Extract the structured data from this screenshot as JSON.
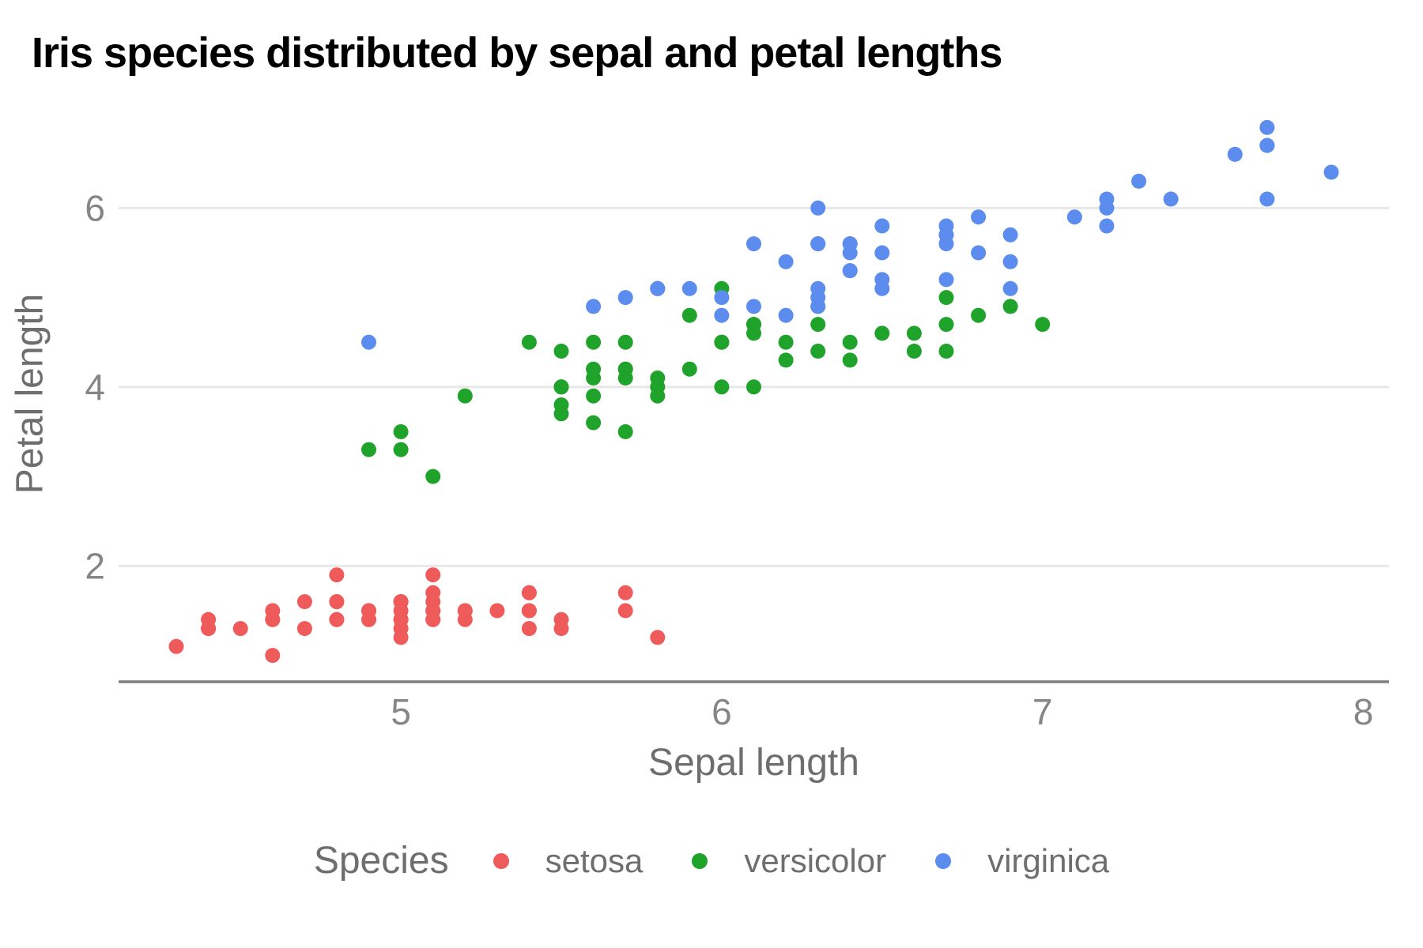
{
  "chart_data": {
    "type": "scatter",
    "title": "Iris species distributed by sepal and petal lengths",
    "xlabel": "Sepal length",
    "ylabel": "Petal length",
    "legend_title": "Species",
    "legend_position": "bottom",
    "grid": "horizontal-only",
    "xlim": [
      4.12,
      8.08
    ],
    "ylim": [
      0.705,
      7.195
    ],
    "xticks": [
      5,
      6,
      7,
      8
    ],
    "yticks": [
      2,
      4,
      6
    ],
    "colors": {
      "setosa": "#ef5a5a",
      "versicolor": "#1fa32b",
      "virginica": "#5b8cee",
      "gridline": "#e8e8e8",
      "axis_line": "#7f7f7f",
      "tick_text": "#868686",
      "axis_title_text": "#6e6e6e",
      "title_text": "#000000"
    },
    "series": [
      {
        "name": "setosa",
        "color": "#ef5a5a",
        "points": [
          [
            5.1,
            1.4
          ],
          [
            4.9,
            1.4
          ],
          [
            4.7,
            1.3
          ],
          [
            4.6,
            1.5
          ],
          [
            5.0,
            1.4
          ],
          [
            5.4,
            1.7
          ],
          [
            4.6,
            1.4
          ],
          [
            5.0,
            1.5
          ],
          [
            4.4,
            1.4
          ],
          [
            4.9,
            1.5
          ],
          [
            5.4,
            1.5
          ],
          [
            4.8,
            1.6
          ],
          [
            4.8,
            1.4
          ],
          [
            4.3,
            1.1
          ],
          [
            5.8,
            1.2
          ],
          [
            5.7,
            1.5
          ],
          [
            5.4,
            1.3
          ],
          [
            5.1,
            1.4
          ],
          [
            5.7,
            1.7
          ],
          [
            5.1,
            1.5
          ],
          [
            5.4,
            1.7
          ],
          [
            5.1,
            1.5
          ],
          [
            4.6,
            1.0
          ],
          [
            5.1,
            1.7
          ],
          [
            4.8,
            1.9
          ],
          [
            5.0,
            1.6
          ],
          [
            5.0,
            1.6
          ],
          [
            5.2,
            1.5
          ],
          [
            5.2,
            1.4
          ],
          [
            4.7,
            1.6
          ],
          [
            4.8,
            1.6
          ],
          [
            5.4,
            1.5
          ],
          [
            5.2,
            1.5
          ],
          [
            5.5,
            1.4
          ],
          [
            4.9,
            1.5
          ],
          [
            5.0,
            1.2
          ],
          [
            5.5,
            1.3
          ],
          [
            4.9,
            1.4
          ],
          [
            4.4,
            1.3
          ],
          [
            5.1,
            1.5
          ],
          [
            5.0,
            1.3
          ],
          [
            4.5,
            1.3
          ],
          [
            4.4,
            1.3
          ],
          [
            5.0,
            1.6
          ],
          [
            5.1,
            1.9
          ],
          [
            4.8,
            1.4
          ],
          [
            5.1,
            1.6
          ],
          [
            4.6,
            1.4
          ],
          [
            5.3,
            1.5
          ],
          [
            5.0,
            1.4
          ]
        ]
      },
      {
        "name": "versicolor",
        "color": "#1fa32b",
        "points": [
          [
            7.0,
            4.7
          ],
          [
            6.4,
            4.5
          ],
          [
            6.9,
            4.9
          ],
          [
            5.5,
            4.0
          ],
          [
            6.5,
            4.6
          ],
          [
            5.7,
            4.5
          ],
          [
            6.3,
            4.7
          ],
          [
            4.9,
            3.3
          ],
          [
            6.6,
            4.6
          ],
          [
            5.2,
            3.9
          ],
          [
            5.0,
            3.5
          ],
          [
            5.9,
            4.2
          ],
          [
            6.0,
            4.0
          ],
          [
            6.1,
            4.7
          ],
          [
            5.6,
            3.6
          ],
          [
            6.7,
            4.4
          ],
          [
            5.6,
            4.5
          ],
          [
            5.8,
            4.1
          ],
          [
            6.2,
            4.5
          ],
          [
            5.6,
            3.9
          ],
          [
            5.9,
            4.8
          ],
          [
            6.1,
            4.0
          ],
          [
            6.3,
            4.9
          ],
          [
            6.1,
            4.7
          ],
          [
            6.4,
            4.3
          ],
          [
            6.6,
            4.4
          ],
          [
            6.8,
            4.8
          ],
          [
            6.7,
            5.0
          ],
          [
            6.0,
            4.5
          ],
          [
            5.7,
            3.5
          ],
          [
            5.5,
            3.8
          ],
          [
            5.5,
            3.7
          ],
          [
            5.8,
            3.9
          ],
          [
            6.0,
            5.1
          ],
          [
            5.4,
            4.5
          ],
          [
            6.0,
            4.5
          ],
          [
            6.7,
            4.7
          ],
          [
            6.3,
            4.4
          ],
          [
            5.6,
            4.1
          ],
          [
            5.5,
            4.0
          ],
          [
            5.5,
            4.4
          ],
          [
            6.1,
            4.6
          ],
          [
            5.8,
            4.0
          ],
          [
            5.0,
            3.3
          ],
          [
            5.6,
            4.2
          ],
          [
            5.7,
            4.2
          ],
          [
            5.7,
            4.2
          ],
          [
            6.2,
            4.3
          ],
          [
            5.1,
            3.0
          ],
          [
            5.7,
            4.1
          ]
        ]
      },
      {
        "name": "virginica",
        "color": "#5b8cee",
        "points": [
          [
            6.3,
            6.0
          ],
          [
            5.8,
            5.1
          ],
          [
            7.1,
            5.9
          ],
          [
            6.3,
            5.6
          ],
          [
            6.5,
            5.8
          ],
          [
            7.6,
            6.6
          ],
          [
            4.9,
            4.5
          ],
          [
            7.3,
            6.3
          ],
          [
            6.7,
            5.8
          ],
          [
            7.2,
            6.1
          ],
          [
            6.5,
            5.1
          ],
          [
            6.4,
            5.3
          ],
          [
            6.8,
            5.5
          ],
          [
            5.7,
            5.0
          ],
          [
            5.8,
            5.1
          ],
          [
            6.4,
            5.3
          ],
          [
            6.5,
            5.5
          ],
          [
            7.7,
            6.7
          ],
          [
            7.7,
            6.9
          ],
          [
            6.0,
            5.0
          ],
          [
            6.9,
            5.7
          ],
          [
            5.6,
            4.9
          ],
          [
            7.7,
            6.7
          ],
          [
            6.3,
            4.9
          ],
          [
            6.7,
            5.7
          ],
          [
            7.2,
            6.0
          ],
          [
            6.2,
            4.8
          ],
          [
            6.1,
            4.9
          ],
          [
            6.4,
            5.6
          ],
          [
            7.2,
            5.8
          ],
          [
            7.4,
            6.1
          ],
          [
            7.9,
            6.4
          ],
          [
            6.4,
            5.6
          ],
          [
            6.3,
            5.1
          ],
          [
            6.1,
            5.6
          ],
          [
            7.7,
            6.1
          ],
          [
            6.3,
            5.6
          ],
          [
            6.4,
            5.5
          ],
          [
            6.0,
            4.8
          ],
          [
            6.9,
            5.4
          ],
          [
            6.7,
            5.6
          ],
          [
            6.9,
            5.1
          ],
          [
            5.8,
            5.1
          ],
          [
            6.8,
            5.9
          ],
          [
            6.7,
            5.7
          ],
          [
            6.7,
            5.2
          ],
          [
            6.3,
            5.0
          ],
          [
            6.5,
            5.2
          ],
          [
            6.2,
            5.4
          ],
          [
            5.9,
            5.1
          ]
        ]
      }
    ]
  }
}
